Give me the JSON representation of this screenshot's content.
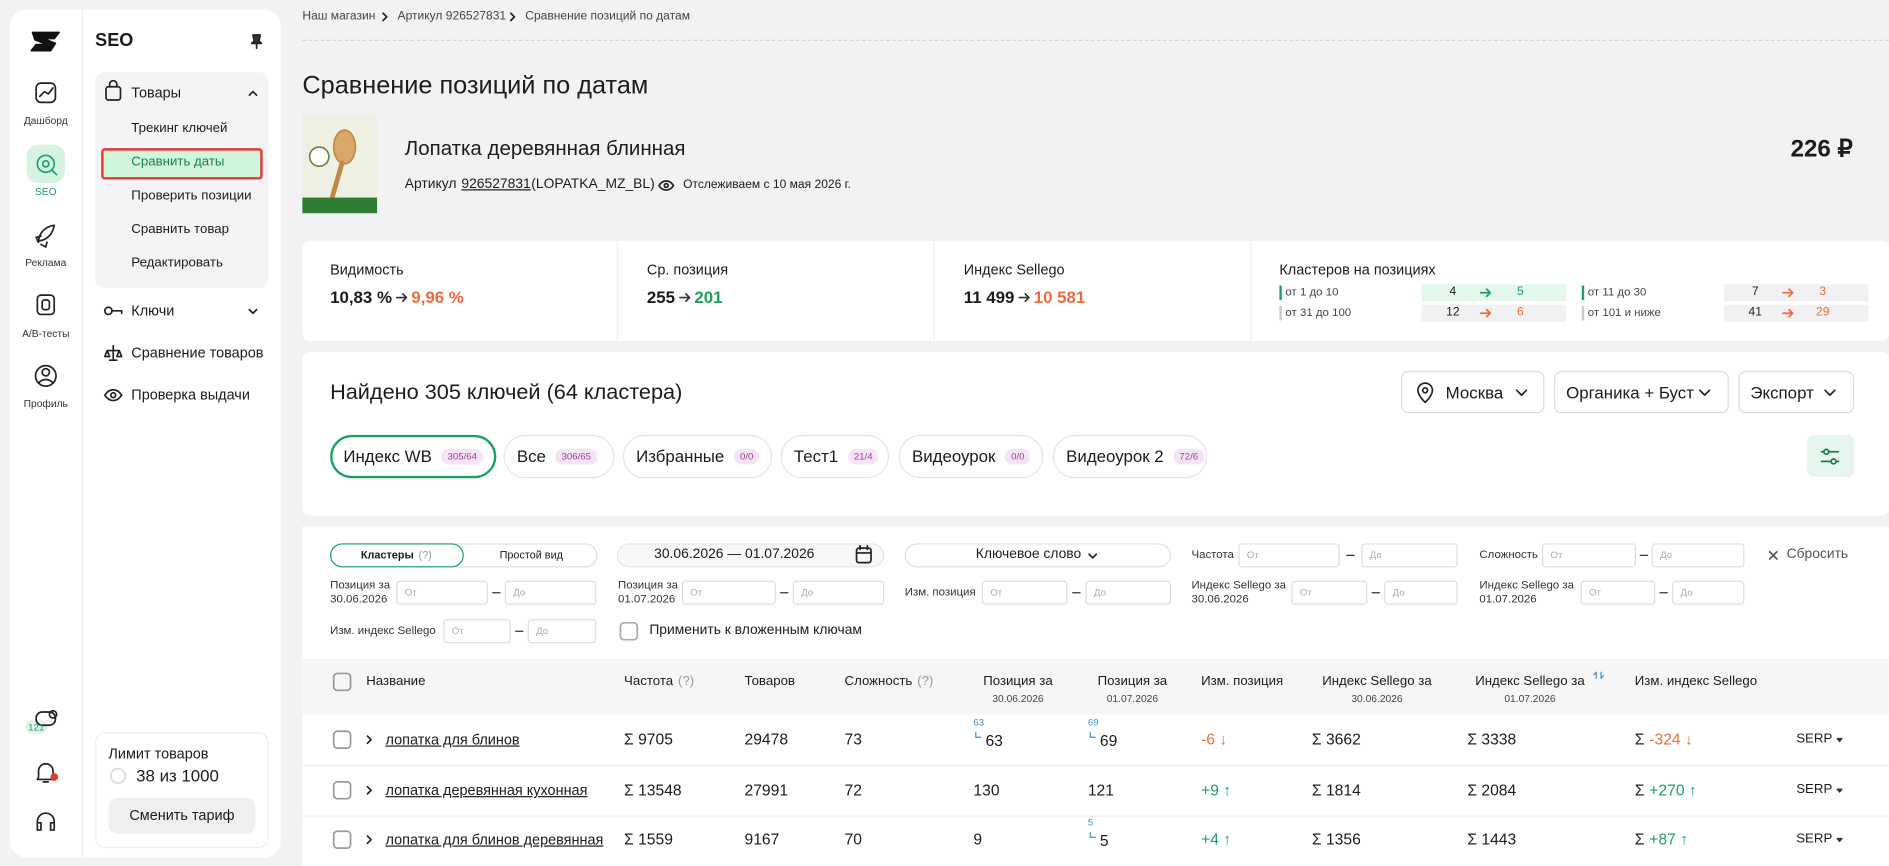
{
  "rail": {
    "items": [
      "Дашборд",
      "SEO",
      "Реклама",
      "A/B-тесты",
      "Профиль"
    ],
    "badge": "121"
  },
  "menu": {
    "title": "SEO",
    "products": {
      "label": "Товары",
      "items": [
        "Трекинг ключей",
        "Сравнить даты",
        "Проверить позиции",
        "Сравнить товар",
        "Редактировать"
      ]
    },
    "keys": "Ключи",
    "compare": "Сравнение товаров",
    "check": "Проверка выдачи"
  },
  "limit": {
    "title": "Лимит товаров",
    "value": "38 из 1000",
    "button": "Сменить тариф"
  },
  "breadcrumbs": [
    "Наш магазин",
    "Артикул 926527831",
    "Сравнение позиций по датам"
  ],
  "title": "Сравнение позиций по датам",
  "product": {
    "name": "Лопатка деревянная блинная",
    "sku_label": "Артикул",
    "sku": "926527831",
    "code": "(LOPATKA_MZ_BL)",
    "tracking": "Отслеживаем с 10 мая 2026 г.",
    "price": "226 ₽"
  },
  "stats": [
    {
      "label": "Видимость",
      "from": "10,83 %",
      "to": "9,96 %",
      "trend": "down"
    },
    {
      "label": "Ср. позиция",
      "from": "255",
      "to": "201",
      "trend": "up"
    },
    {
      "label": "Индекс Sellego",
      "from": "11 499",
      "to": "10 581",
      "trend": "down"
    }
  ],
  "clusters": {
    "label": "Кластеров на позициях",
    "rows": [
      {
        "label": "от 1 до 10",
        "from": "4",
        "to": "5",
        "trend": "up"
      },
      {
        "label": "от 31 до 100",
        "from": "12",
        "to": "6",
        "trend": "down"
      },
      {
        "label": "от 11 до 30",
        "from": "7",
        "to": "3",
        "trend": "down"
      },
      {
        "label": "от 101 и ниже",
        "from": "41",
        "to": "29",
        "trend": "down"
      }
    ]
  },
  "found": "Найдено 305 ключей (64 кластера)",
  "dropdowns": [
    "Москва",
    "Органика + Буст",
    "Экспорт"
  ],
  "tabs": [
    {
      "label": "Индекс WB",
      "count": "305/64",
      "active": true
    },
    {
      "label": "Все",
      "count": "306/65"
    },
    {
      "label": "Избранные",
      "count": "0/0"
    },
    {
      "label": "Тест1",
      "count": "21/4"
    },
    {
      "label": "Видеоурок",
      "count": "0/0"
    },
    {
      "label": "Видеоурок 2",
      "count": "72/6"
    }
  ],
  "filters": {
    "view": [
      "Кластеры",
      "Простой вид"
    ],
    "view_help": "(?)",
    "dates": "30.06.2026 — 01.07.2026",
    "keyword": "Ключевое слово",
    "from": "От",
    "to": "До",
    "reset": "Сбросить",
    "apply": "Применить к вложенным ключам",
    "fields": [
      {
        "label": "Частота"
      },
      {
        "label": "Сложность"
      },
      {
        "label": "Позиция за",
        "sub": "30.06.2026"
      },
      {
        "label": "Позиция за",
        "sub": "01.07.2026"
      },
      {
        "label": "Изм. позиция"
      },
      {
        "label": "Индекс Sellego за",
        "sub": "30.06.2026"
      },
      {
        "label": "Индекс Sellego за",
        "sub": "01.07.2026"
      },
      {
        "label": "Изм. индекс Sellego"
      }
    ]
  },
  "table": {
    "sigma": "Σ",
    "serp": "SERP",
    "headers": [
      {
        "label": "Название"
      },
      {
        "label": "Частота",
        "help": "(?)"
      },
      {
        "label": "Товаров"
      },
      {
        "label": "Сложность",
        "help": "(?)"
      },
      {
        "label": "Позиция за",
        "sub": "30.06.2026"
      },
      {
        "label": "Позиция за",
        "sub": "01.07.2026"
      },
      {
        "label": "Изм. позиция"
      },
      {
        "label": "Индекс Sellego за",
        "sub": "30.06.2026"
      },
      {
        "label": "Индекс Sellego за",
        "sub": "01.07.2026"
      },
      {
        "label": "Изм. индекс Sellego"
      }
    ],
    "rows": [
      {
        "name": "лопатка для блинов",
        "frequency": "Σ 9705",
        "products": "29478",
        "complexity": "73",
        "pos1_hint": "63",
        "pos1": "63",
        "pos2_hint": "69",
        "pos2": "69",
        "change": "-6 ↓",
        "trend": "down",
        "idx1": "Σ 3662",
        "idx2": "Σ 3338",
        "idx_change": "-324 ↓",
        "idx_trend": "down"
      },
      {
        "name": "лопатка деревянная кухонная",
        "frequency": "Σ 13548",
        "products": "27991",
        "complexity": "72",
        "pos1": "130",
        "pos2": "121",
        "change": "+9 ↑",
        "trend": "up",
        "idx1": "Σ 1814",
        "idx2": "Σ 2084",
        "idx_change": "+270 ↑",
        "idx_trend": "up"
      },
      {
        "name": "лопатка для блинов деревянная",
        "frequency": "Σ 1559",
        "products": "9167",
        "complexity": "70",
        "pos1": "9",
        "pos2_hint": "5",
        "pos2": "5",
        "change": "+4 ↑",
        "trend": "up",
        "idx1": "Σ 1356",
        "idx2": "Σ 1443",
        "idx_change": "+87 ↑",
        "idx_trend": "up"
      }
    ]
  }
}
